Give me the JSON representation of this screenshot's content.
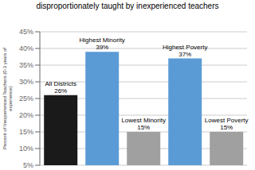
{
  "chart_data": {
    "type": "bar",
    "title": "disproportionately taught by inexperienced teachers",
    "y_label": "Percent of Inexperienced Teachers (0-3 years of\nexperience)",
    "categories": [
      "All Districts",
      "Highest Minority",
      "Lowest Minority",
      "Highest Poverty",
      "Lowest Poverty"
    ],
    "values": [
      26,
      39,
      15,
      37,
      15
    ],
    "value_labels": [
      "All Districts\n26%",
      "Highest Minority\n39%",
      "Lowest Minority\n15%",
      "Highest Poverty\n37%",
      "Lowest Poverty\n15%"
    ],
    "colors": [
      "#1a1a1a",
      "#5b9bd5",
      "#a0a0a0",
      "#5b9bd5",
      "#a0a0a0"
    ],
    "ylim": [
      5,
      45
    ],
    "yticks": [
      {
        "value": 5,
        "label": "5%"
      },
      {
        "value": 10,
        "label": "10%"
      },
      {
        "value": 15,
        "label": "15%"
      },
      {
        "value": 20,
        "label": "20%"
      },
      {
        "value": 25,
        "label": "25%"
      },
      {
        "value": 30,
        "label": "30%"
      },
      {
        "value": 35,
        "label": "35%"
      },
      {
        "value": 40,
        "label": "40%"
      },
      {
        "value": 45,
        "label": "45%"
      }
    ],
    "grid": true,
    "data_labels": true,
    "tick_labels": "y"
  }
}
